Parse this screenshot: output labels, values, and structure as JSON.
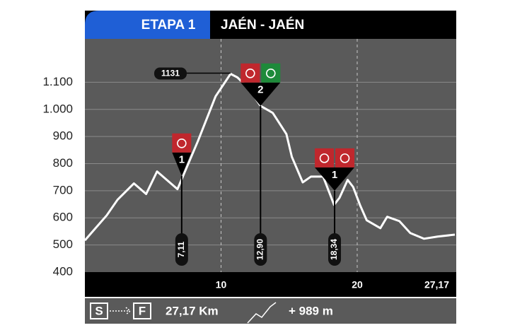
{
  "chart_data": {
    "type": "line",
    "title": "ETAPA 1",
    "subtitle": "JAÉN - JAÉN",
    "x": [
      0,
      1.6,
      2.4,
      3.6,
      4.5,
      5.3,
      6.8,
      7.2,
      8.3,
      9.6,
      10.7,
      11.2,
      12.0,
      12.9,
      13.8,
      14.8,
      15.2,
      16.0,
      16.6,
      17.5,
      18.3,
      18.7,
      19.3,
      19.7,
      20.2,
      20.7,
      21.7,
      22.2,
      23.1,
      23.9,
      24.9,
      25.9,
      27.17
    ],
    "values": [
      517,
      609,
      667,
      727,
      688,
      771,
      706,
      753,
      883,
      1048,
      1131,
      1118,
      1079,
      1013,
      987,
      909,
      825,
      731,
      752,
      752,
      648,
      674,
      740,
      714,
      648,
      591,
      562,
      604,
      588,
      544,
      523,
      531,
      538
    ],
    "color": "#ffffff",
    "peak_index": 10,
    "xlim": [
      0,
      27.17
    ],
    "xticks": [
      10,
      20,
      {
        "value": 27.17,
        "label": "27,17"
      }
    ],
    "ylim": [
      400,
      1260
    ],
    "yticks": [
      400,
      500,
      600,
      700,
      800,
      900,
      {
        "value": 1000,
        "label": "1.000"
      },
      {
        "value": 1100,
        "label": "1.100"
      }
    ],
    "grid": true,
    "markers": [
      {
        "km": {
          "value": 7.11,
          "label": "7,11"
        },
        "number": "1",
        "elevation": 755
      },
      {
        "km": {
          "value": 12.9,
          "label": "12,90"
        },
        "number": "2",
        "elevation": 1013
      },
      {
        "km": {
          "value": 18.34,
          "label": "18,34"
        },
        "number": "1",
        "elevation": 700
      }
    ],
    "footer": {
      "start": "S",
      "finish": "F",
      "distance": "27,17 Km",
      "climb": "+ 989 m"
    }
  }
}
